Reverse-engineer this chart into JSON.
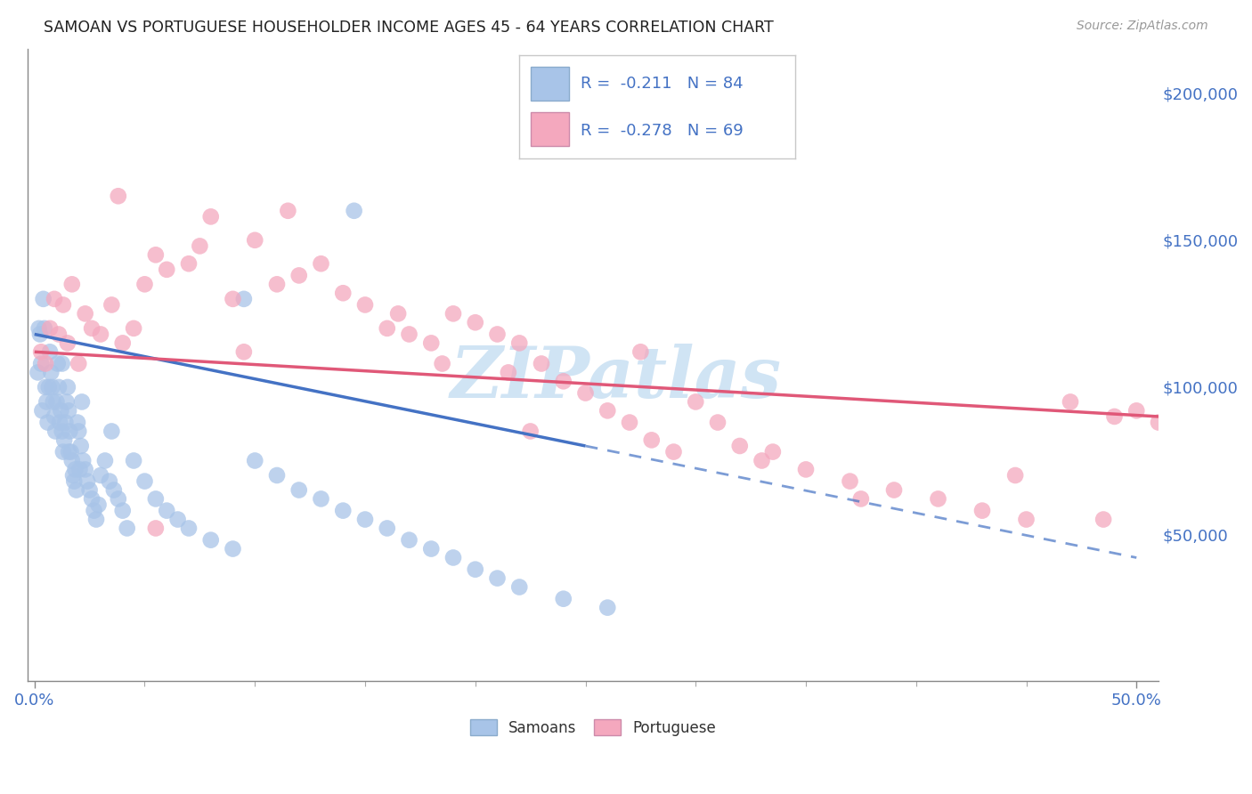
{
  "title": "SAMOAN VS PORTUGUESE HOUSEHOLDER INCOME AGES 45 - 64 YEARS CORRELATION CHART",
  "source": "Source: ZipAtlas.com",
  "legend_label1": "Samoans",
  "legend_label2": "Portuguese",
  "R1": "-0.211",
  "N1": "84",
  "R2": "-0.278",
  "N2": "69",
  "color_samoan": "#a8c4e8",
  "color_portuguese": "#f4a8be",
  "color_line_samoan": "#4472c4",
  "color_line_portuguese": "#e05878",
  "color_axis": "#4472c4",
  "color_grid": "#c8d8e8",
  "watermark_text": "ZIPatlas",
  "watermark_color": "#d0e4f4",
  "ylim_min": 0,
  "ylim_max": 215000,
  "xlim_min": -0.3,
  "xlim_max": 51,
  "yticks": [
    50000,
    100000,
    150000,
    200000
  ],
  "ytick_labels": [
    "$50,000",
    "$100,000",
    "$150,000",
    "$200,000"
  ],
  "xtick_major": [
    0,
    50
  ],
  "xtick_major_labels": [
    "0.0%",
    "50.0%"
  ],
  "samoan_x": [
    0.15,
    0.2,
    0.25,
    0.3,
    0.35,
    0.4,
    0.5,
    0.55,
    0.6,
    0.65,
    0.7,
    0.75,
    0.8,
    0.85,
    0.9,
    0.95,
    1.0,
    1.05,
    1.1,
    1.15,
    1.2,
    1.25,
    1.3,
    1.35,
    1.4,
    1.45,
    1.5,
    1.55,
    1.6,
    1.65,
    1.7,
    1.75,
    1.8,
    1.85,
    1.9,
    2.0,
    2.1,
    2.2,
    2.3,
    2.4,
    2.5,
    2.6,
    2.7,
    2.8,
    2.9,
    3.0,
    3.2,
    3.4,
    3.6,
    3.8,
    4.0,
    4.5,
    5.0,
    5.5,
    6.0,
    6.5,
    7.0,
    8.0,
    9.0,
    10.0,
    11.0,
    12.0,
    13.0,
    14.0,
    15.0,
    16.0,
    17.0,
    18.0,
    19.0,
    20.0,
    21.0,
    22.0,
    24.0,
    26.0,
    14.5,
    9.5,
    3.5,
    4.2,
    2.15,
    1.95,
    0.45,
    1.55,
    1.25,
    2.05
  ],
  "samoan_y": [
    105000,
    120000,
    118000,
    108000,
    92000,
    130000,
    100000,
    95000,
    88000,
    100000,
    112000,
    105000,
    100000,
    95000,
    90000,
    85000,
    95000,
    108000,
    100000,
    88000,
    92000,
    85000,
    78000,
    82000,
    88000,
    95000,
    100000,
    92000,
    85000,
    78000,
    75000,
    70000,
    68000,
    72000,
    65000,
    85000,
    80000,
    75000,
    72000,
    68000,
    65000,
    62000,
    58000,
    55000,
    60000,
    70000,
    75000,
    68000,
    65000,
    62000,
    58000,
    75000,
    68000,
    62000,
    58000,
    55000,
    52000,
    48000,
    45000,
    75000,
    70000,
    65000,
    62000,
    58000,
    55000,
    52000,
    48000,
    45000,
    42000,
    38000,
    35000,
    32000,
    28000,
    25000,
    160000,
    130000,
    85000,
    52000,
    95000,
    88000,
    120000,
    78000,
    108000,
    72000
  ],
  "portuguese_x": [
    0.3,
    0.5,
    0.7,
    0.9,
    1.1,
    1.3,
    1.5,
    1.7,
    2.0,
    2.3,
    2.6,
    3.0,
    3.5,
    4.0,
    4.5,
    5.0,
    5.5,
    6.0,
    7.0,
    8.0,
    9.0,
    10.0,
    11.0,
    12.0,
    13.0,
    14.0,
    15.0,
    16.0,
    17.0,
    18.0,
    19.0,
    20.0,
    21.0,
    22.0,
    23.0,
    24.0,
    25.0,
    26.0,
    27.0,
    28.0,
    29.0,
    30.0,
    31.0,
    32.0,
    33.0,
    35.0,
    37.0,
    39.0,
    41.0,
    43.0,
    45.0,
    47.0,
    49.0,
    50.0,
    51.0,
    7.5,
    11.5,
    3.8,
    16.5,
    27.5,
    33.5,
    21.5,
    9.5,
    18.5,
    44.5,
    48.5,
    22.5,
    37.5,
    5.5
  ],
  "portuguese_y": [
    112000,
    108000,
    120000,
    130000,
    118000,
    128000,
    115000,
    135000,
    108000,
    125000,
    120000,
    118000,
    128000,
    115000,
    120000,
    135000,
    145000,
    140000,
    142000,
    158000,
    130000,
    150000,
    135000,
    138000,
    142000,
    132000,
    128000,
    120000,
    118000,
    115000,
    125000,
    122000,
    118000,
    115000,
    108000,
    102000,
    98000,
    92000,
    88000,
    82000,
    78000,
    95000,
    88000,
    80000,
    75000,
    72000,
    68000,
    65000,
    62000,
    58000,
    55000,
    95000,
    90000,
    92000,
    88000,
    148000,
    160000,
    165000,
    125000,
    112000,
    78000,
    105000,
    112000,
    108000,
    70000,
    55000,
    85000,
    62000,
    52000
  ],
  "line_samoan_x0": 0,
  "line_samoan_x1": 25,
  "line_samoan_y0": 118000,
  "line_samoan_y1": 80000,
  "line_samoan_dash_x0": 25,
  "line_samoan_dash_x1": 50,
  "line_samoan_dash_y0": 80000,
  "line_samoan_dash_y1": 42000,
  "line_portuguese_x0": 0,
  "line_portuguese_x1": 51,
  "line_portuguese_y0": 112000,
  "line_portuguese_y1": 90000
}
